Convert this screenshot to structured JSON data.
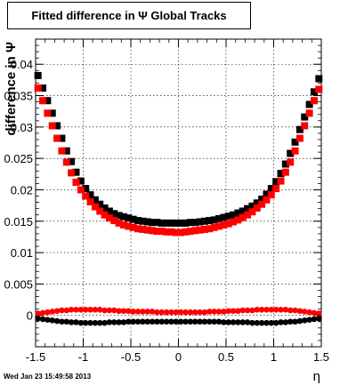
{
  "page": {
    "footer_timestamp": "Wed Jan 23 15:49:58 2013"
  },
  "chart_data": {
    "type": "scatter",
    "title": "Fitted difference in Ψ   Global Tracks",
    "xlabel": "η",
    "ylabel": "difference in Ψ",
    "xlim": [
      -1.5,
      1.5
    ],
    "ylim": [
      -0.005,
      0.044
    ],
    "grid": true,
    "x_ticks": [
      -1.5,
      -1,
      -0.5,
      0,
      0.5,
      1,
      1.5
    ],
    "x_tick_labels": [
      "-1.5",
      "-1",
      "-0.5",
      "0",
      "0.5",
      "1",
      "1.5"
    ],
    "y_ticks": [
      0,
      0.005,
      0.01,
      0.015,
      0.02,
      0.025,
      0.03,
      0.035,
      0.04
    ],
    "y_tick_labels": [
      "0",
      "0.005",
      "0.01",
      "0.015",
      "0.02",
      "0.025",
      "0.03",
      "0.035",
      "0.04"
    ],
    "colors": {
      "black_series": "#000000",
      "red_series": "#ff0000",
      "grid": "#000000"
    },
    "series": [
      {
        "color": "#000000",
        "marker": "square",
        "x": [
          -1.475,
          -1.425,
          -1.375,
          -1.325,
          -1.275,
          -1.225,
          -1.175,
          -1.125,
          -1.075,
          -1.025,
          -0.975,
          -0.925,
          -0.875,
          -0.825,
          -0.775,
          -0.725,
          -0.675,
          -0.625,
          -0.575,
          -0.525,
          -0.475,
          -0.425,
          -0.375,
          -0.325,
          -0.275,
          -0.225,
          -0.175,
          -0.125,
          -0.075,
          -0.025,
          0.025,
          0.075,
          0.125,
          0.175,
          0.225,
          0.275,
          0.325,
          0.375,
          0.425,
          0.475,
          0.525,
          0.575,
          0.625,
          0.675,
          0.725,
          0.775,
          0.825,
          0.875,
          0.925,
          0.975,
          1.025,
          1.075,
          1.125,
          1.175,
          1.225,
          1.275,
          1.325,
          1.375,
          1.425,
          1.475
        ],
        "y": [
          0.0382,
          0.0362,
          0.0342,
          0.0322,
          0.0302,
          0.0282,
          0.0262,
          0.0245,
          0.0228,
          0.0214,
          0.0202,
          0.0192,
          0.0184,
          0.0177,
          0.0171,
          0.0166,
          0.0162,
          0.0159,
          0.0157,
          0.0155,
          0.0153,
          0.0151,
          0.015,
          0.0149,
          0.0148,
          0.0148,
          0.0147,
          0.0147,
          0.0147,
          0.0147,
          0.0147,
          0.0147,
          0.0148,
          0.0148,
          0.0149,
          0.015,
          0.0151,
          0.0152,
          0.0154,
          0.0156,
          0.0158,
          0.016,
          0.0163,
          0.0166,
          0.017,
          0.0174,
          0.0179,
          0.0185,
          0.0193,
          0.0202,
          0.0213,
          0.0226,
          0.0241,
          0.0258,
          0.0276,
          0.0296,
          0.0316,
          0.0336,
          0.0356,
          0.0377
        ]
      },
      {
        "color": "#ff0000",
        "marker": "square",
        "x": [
          -1.475,
          -1.425,
          -1.375,
          -1.325,
          -1.275,
          -1.225,
          -1.175,
          -1.125,
          -1.075,
          -1.025,
          -0.975,
          -0.925,
          -0.875,
          -0.825,
          -0.775,
          -0.725,
          -0.675,
          -0.625,
          -0.575,
          -0.525,
          -0.475,
          -0.425,
          -0.375,
          -0.325,
          -0.275,
          -0.225,
          -0.175,
          -0.125,
          -0.075,
          -0.025,
          0.025,
          0.075,
          0.125,
          0.175,
          0.225,
          0.275,
          0.325,
          0.375,
          0.425,
          0.475,
          0.525,
          0.575,
          0.625,
          0.675,
          0.725,
          0.775,
          0.825,
          0.875,
          0.925,
          0.975,
          1.025,
          1.075,
          1.125,
          1.175,
          1.225,
          1.275,
          1.325,
          1.375,
          1.425,
          1.475
        ],
        "y": [
          0.0362,
          0.0342,
          0.0322,
          0.0302,
          0.0282,
          0.0262,
          0.0244,
          0.0227,
          0.0212,
          0.02,
          0.019,
          0.0181,
          0.0173,
          0.0166,
          0.016,
          0.0155,
          0.0151,
          0.0147,
          0.0144,
          0.0142,
          0.014,
          0.0138,
          0.0137,
          0.0136,
          0.0135,
          0.0134,
          0.0134,
          0.0133,
          0.0133,
          0.0132,
          0.0132,
          0.0133,
          0.0134,
          0.0135,
          0.0136,
          0.0137,
          0.0138,
          0.014,
          0.0142,
          0.0144,
          0.0146,
          0.0149,
          0.0152,
          0.0156,
          0.016,
          0.0165,
          0.0171,
          0.0177,
          0.0184,
          0.0192,
          0.0202,
          0.0214,
          0.0228,
          0.0244,
          0.0262,
          0.0282,
          0.0302,
          0.0322,
          0.0342,
          0.036
        ]
      },
      {
        "color": "#ff0000",
        "marker": "circle",
        "x": [
          -1.475,
          -1.425,
          -1.375,
          -1.325,
          -1.275,
          -1.225,
          -1.175,
          -1.125,
          -1.075,
          -1.025,
          -0.975,
          -0.925,
          -0.875,
          -0.825,
          -0.775,
          -0.725,
          -0.675,
          -0.625,
          -0.575,
          -0.525,
          -0.475,
          -0.425,
          -0.375,
          -0.325,
          -0.275,
          -0.225,
          -0.175,
          -0.125,
          -0.075,
          -0.025,
          0.025,
          0.075,
          0.125,
          0.175,
          0.225,
          0.275,
          0.325,
          0.375,
          0.425,
          0.475,
          0.525,
          0.575,
          0.625,
          0.675,
          0.725,
          0.775,
          0.825,
          0.875,
          0.925,
          0.975,
          1.025,
          1.075,
          1.125,
          1.175,
          1.225,
          1.275,
          1.325,
          1.375,
          1.425,
          1.475
        ],
        "y": [
          0.0003,
          0.0004,
          0.0005,
          0.0006,
          0.0007,
          0.0008,
          0.0008,
          0.0009,
          0.0009,
          0.0009,
          0.0009,
          0.0009,
          0.0009,
          0.0009,
          0.0008,
          0.0008,
          0.0008,
          0.0007,
          0.0007,
          0.0007,
          0.0006,
          0.0006,
          0.0006,
          0.0006,
          0.0006,
          0.0005,
          0.0005,
          0.0005,
          0.0005,
          0.0005,
          0.0005,
          0.0005,
          0.0005,
          0.0005,
          0.0005,
          0.0005,
          0.0006,
          0.0006,
          0.0006,
          0.0006,
          0.0007,
          0.0007,
          0.0007,
          0.0008,
          0.0008,
          0.0008,
          0.0009,
          0.0009,
          0.0009,
          0.0009,
          0.0009,
          0.0009,
          0.0009,
          0.0008,
          0.0008,
          0.0007,
          0.0006,
          0.0005,
          0.0004,
          0.0003
        ]
      },
      {
        "color": "#000000",
        "marker": "circle",
        "x": [
          -1.475,
          -1.425,
          -1.375,
          -1.325,
          -1.275,
          -1.225,
          -1.175,
          -1.125,
          -1.075,
          -1.025,
          -0.975,
          -0.925,
          -0.875,
          -0.825,
          -0.775,
          -0.725,
          -0.675,
          -0.625,
          -0.575,
          -0.525,
          -0.475,
          -0.425,
          -0.375,
          -0.325,
          -0.275,
          -0.225,
          -0.175,
          -0.125,
          -0.075,
          -0.025,
          0.025,
          0.075,
          0.125,
          0.175,
          0.225,
          0.275,
          0.325,
          0.375,
          0.425,
          0.475,
          0.525,
          0.575,
          0.625,
          0.675,
          0.725,
          0.775,
          0.825,
          0.875,
          0.925,
          0.975,
          1.025,
          1.075,
          1.125,
          1.175,
          1.225,
          1.275,
          1.325,
          1.375,
          1.425,
          1.475
        ],
        "y": [
          -0.0005,
          -0.0006,
          -0.0007,
          -0.0008,
          -0.0009,
          -0.001,
          -0.001,
          -0.0011,
          -0.0011,
          -0.0012,
          -0.0012,
          -0.0012,
          -0.0012,
          -0.0012,
          -0.0012,
          -0.0011,
          -0.0011,
          -0.0011,
          -0.0011,
          -0.001,
          -0.001,
          -0.001,
          -0.001,
          -0.001,
          -0.001,
          -0.001,
          -0.001,
          -0.001,
          -0.001,
          -0.001,
          -0.001,
          -0.001,
          -0.001,
          -0.001,
          -0.001,
          -0.001,
          -0.001,
          -0.001,
          -0.001,
          -0.0011,
          -0.0011,
          -0.0011,
          -0.0011,
          -0.0011,
          -0.0011,
          -0.0012,
          -0.0012,
          -0.0012,
          -0.0012,
          -0.0012,
          -0.0012,
          -0.0011,
          -0.0011,
          -0.001,
          -0.001,
          -0.0009,
          -0.0008,
          -0.0007,
          -0.0006,
          -0.0005
        ]
      }
    ]
  }
}
